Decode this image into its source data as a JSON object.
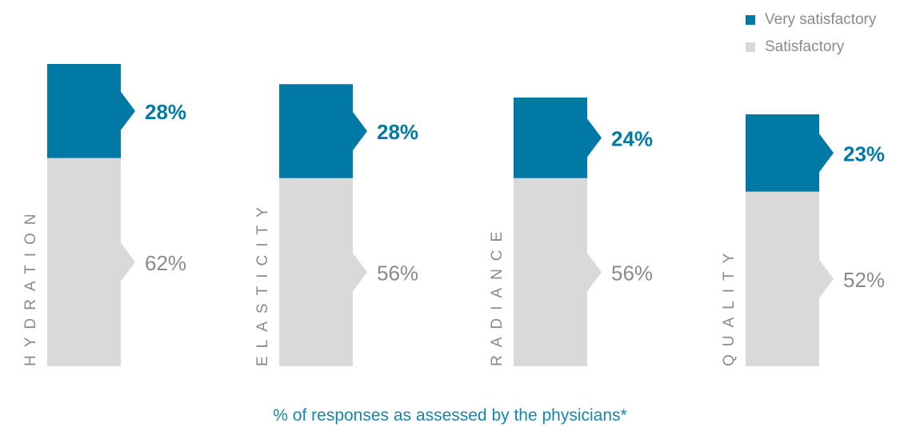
{
  "colors": {
    "very_satisfactory": "#007aa5",
    "satisfactory": "#d9d9d9",
    "category_text": "#8a8a8a",
    "caption": "#1786a8"
  },
  "legend": {
    "items": [
      {
        "label": "Very satisfactory",
        "color": "#007aa5"
      },
      {
        "label": "Satisfactory",
        "color": "#d9d9d9"
      }
    ]
  },
  "caption": "% of responses as assessed by the physicians*",
  "chart_data": {
    "type": "bar",
    "stacked": true,
    "categories": [
      "HYDRATION",
      "ELASTICITY",
      "RADIANCE",
      "QUALITY"
    ],
    "series": [
      {
        "name": "Satisfactory",
        "values": [
          62,
          56,
          56,
          52
        ],
        "labels": [
          "62%",
          "56%",
          "56%",
          "52%"
        ]
      },
      {
        "name": "Very satisfactory",
        "values": [
          28,
          28,
          24,
          23
        ],
        "labels": [
          "28%",
          "28%",
          "24%",
          "23%"
        ]
      }
    ],
    "ylim": [
      0,
      90
    ],
    "grid": false,
    "legend_position": "top-right",
    "xlabel": "% of responses as assessed by the physicians*"
  }
}
